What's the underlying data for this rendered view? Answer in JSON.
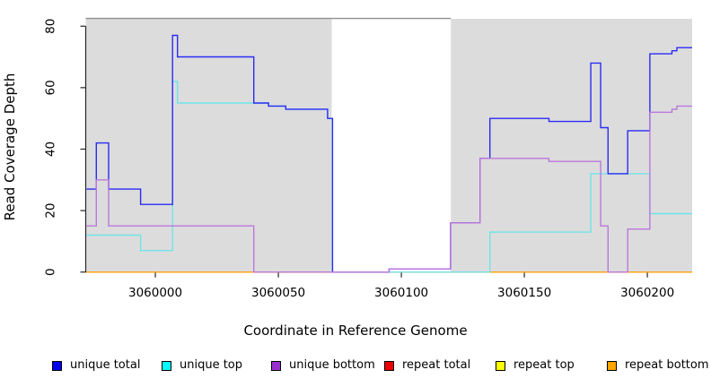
{
  "chart_data": {
    "type": "line",
    "subtype": "step-coverage",
    "title": "",
    "xlabel": "Coordinate in Reference Genome",
    "ylabel": "Read Coverage Depth",
    "xlim": [
      3059971.7,
      3060218.2
    ],
    "ylim": [
      0,
      82.4
    ],
    "x_ticks": [
      3060000,
      3060050,
      3060100,
      3060150,
      3060200
    ],
    "y_ticks": [
      0,
      20,
      40,
      60,
      80
    ],
    "grid": false,
    "shaded_regions": [
      {
        "x0": 3059971.7,
        "x1": 3060071.7,
        "color": "#dcdcdc"
      },
      {
        "x0": 3060120.1,
        "x1": 3060218.2,
        "color": "#dcdcdc"
      }
    ],
    "gap_region": {
      "x0": 3060071.7,
      "x1": 3060120.1,
      "color": "#ffffff"
    },
    "series": [
      {
        "name": "unique total",
        "line_color": "#2b2bf5",
        "legend_color": "#0000ee",
        "draw_rank": 4,
        "steps": [
          [
            3059972,
            27
          ],
          [
            3059976,
            42
          ],
          [
            3059981,
            27
          ],
          [
            3059994,
            22
          ],
          [
            3060007,
            77
          ],
          [
            3060009,
            70
          ],
          [
            3060040,
            55
          ],
          [
            3060046,
            54
          ],
          [
            3060053,
            53
          ],
          [
            3060070,
            50
          ],
          [
            3060072,
            0
          ],
          [
            3060095,
            1
          ],
          [
            3060120,
            16
          ],
          [
            3060132,
            37
          ],
          [
            3060136,
            50
          ],
          [
            3060160,
            49
          ],
          [
            3060177,
            68
          ],
          [
            3060181,
            47
          ],
          [
            3060184,
            32
          ],
          [
            3060192,
            46
          ],
          [
            3060201,
            71
          ],
          [
            3060210,
            72
          ],
          [
            3060212,
            73
          ]
        ]
      },
      {
        "name": "unique top",
        "line_color": "#6fe4e8",
        "legend_color": "#00ffff",
        "draw_rank": 3,
        "steps": [
          [
            3059972,
            12
          ],
          [
            3059994,
            7
          ],
          [
            3060007,
            62
          ],
          [
            3060009,
            55
          ],
          [
            3060046,
            54
          ],
          [
            3060053,
            53
          ],
          [
            3060070,
            50
          ],
          [
            3060072,
            0
          ],
          [
            3060136,
            13
          ],
          [
            3060177,
            32
          ],
          [
            3060201,
            19
          ]
        ]
      },
      {
        "name": "unique bottom",
        "line_color": "#bc77dc",
        "legend_color": "#9b30d0",
        "draw_rank": 5,
        "steps": [
          [
            3059972,
            15
          ],
          [
            3059976,
            30
          ],
          [
            3059981,
            15
          ],
          [
            3060040,
            0
          ],
          [
            3060095,
            1
          ],
          [
            3060120,
            16
          ],
          [
            3060132,
            37
          ],
          [
            3060160,
            36
          ],
          [
            3060181,
            15
          ],
          [
            3060184,
            0
          ],
          [
            3060192,
            14
          ],
          [
            3060201,
            52
          ],
          [
            3060210,
            53
          ],
          [
            3060212,
            54
          ]
        ]
      },
      {
        "name": "repeat total",
        "line_color": "#e60000",
        "legend_color": "#ee0000",
        "draw_rank": 0,
        "steps": [
          [
            3059972,
            0
          ]
        ]
      },
      {
        "name": "repeat top",
        "line_color": "#ffff00",
        "legend_color": "#ffff00",
        "draw_rank": 1,
        "steps": [
          [
            3059972,
            0
          ]
        ]
      },
      {
        "name": "repeat bottom",
        "line_color": "#ffa319",
        "legend_color": "#ffa500",
        "draw_rank": 2,
        "steps": [
          [
            3059972,
            0
          ]
        ]
      }
    ],
    "legend_position": "bottom",
    "colors": {
      "band": "#dcdcdc",
      "gap_top_border": "#8f8f8f",
      "axis": "#262626",
      "text": "#000000"
    }
  }
}
